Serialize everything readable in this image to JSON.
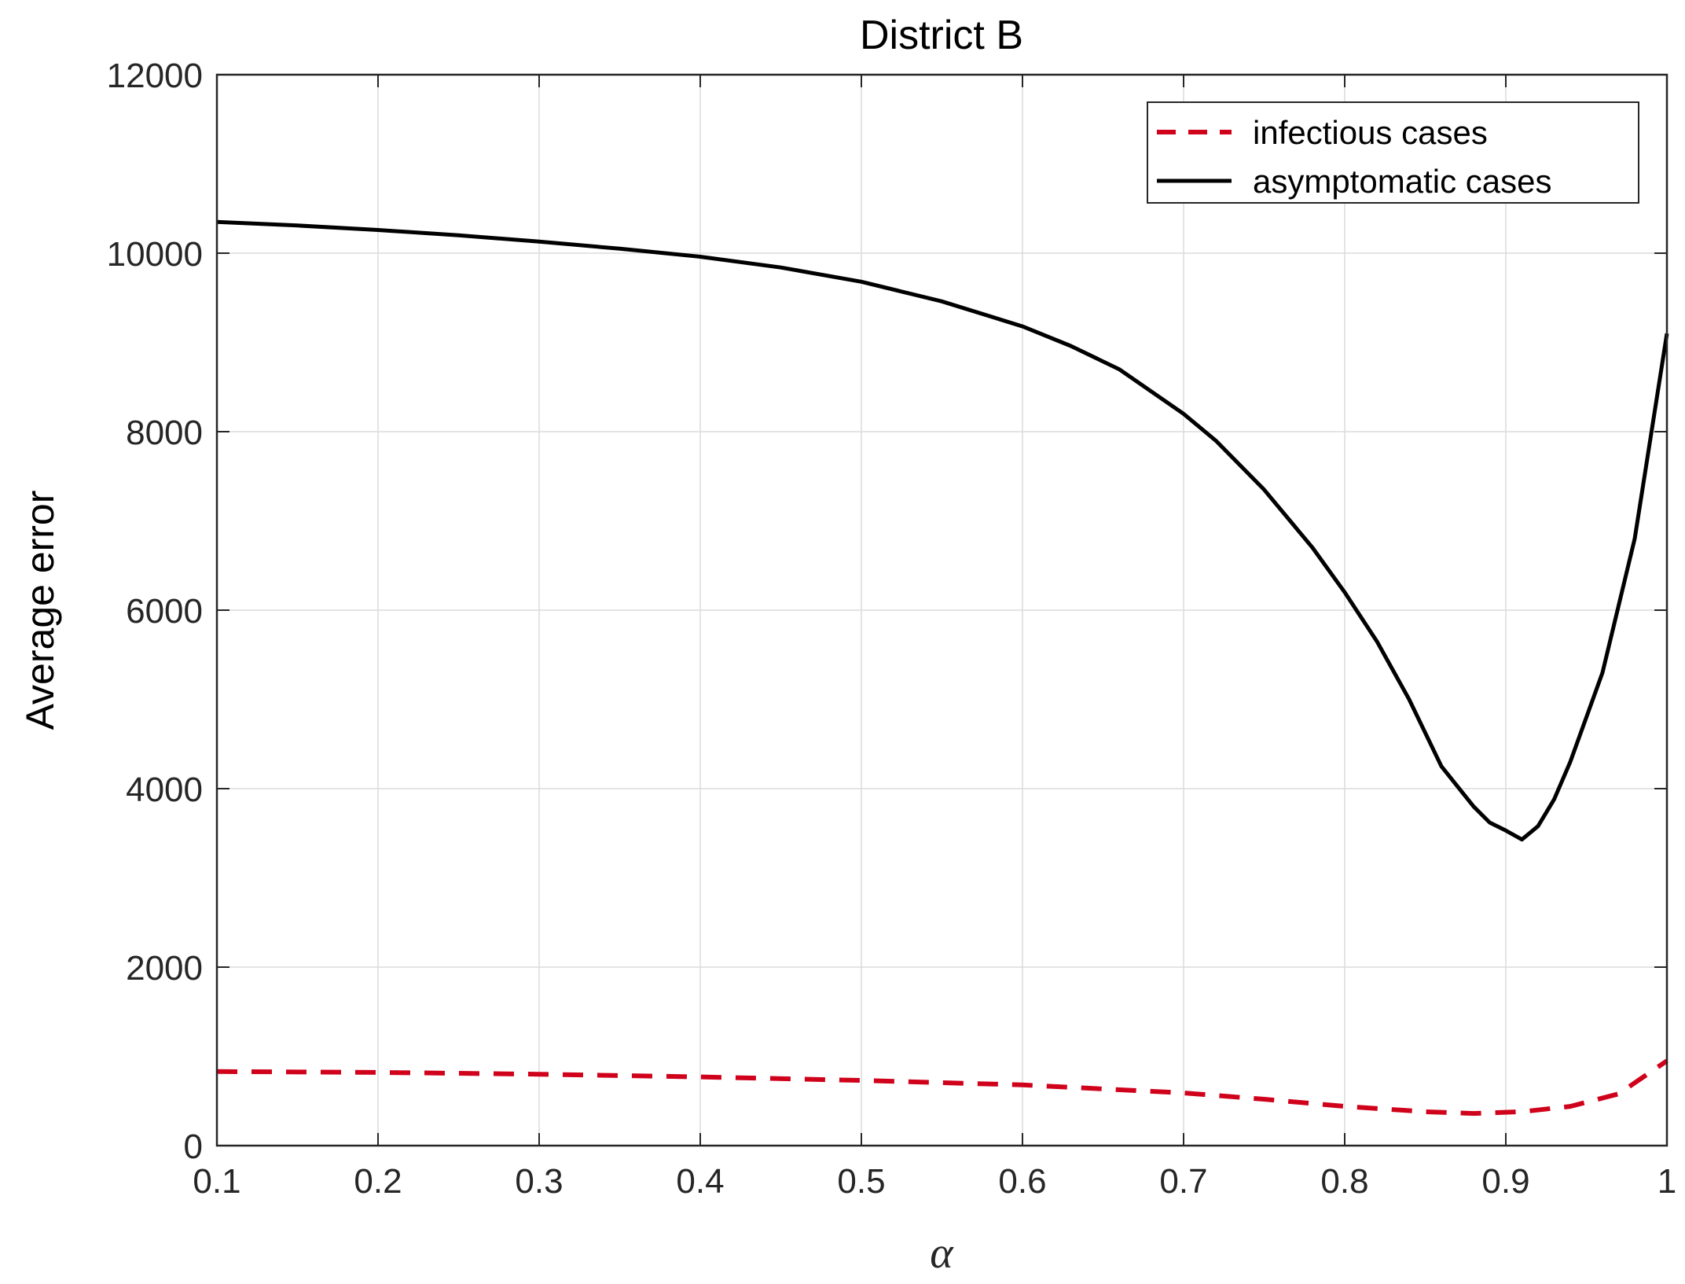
{
  "chart_data": {
    "type": "line",
    "title": "District B",
    "xlabel": "α",
    "ylabel": "Average error",
    "xlim": [
      0.1,
      1
    ],
    "ylim": [
      0,
      12000
    ],
    "xticks": [
      0.1,
      0.2,
      0.3,
      0.4,
      0.5,
      0.6,
      0.7,
      0.8,
      0.9,
      1
    ],
    "xtick_labels": [
      "0.1",
      "0.2",
      "0.3",
      "0.4",
      "0.5",
      "0.6",
      "0.7",
      "0.8",
      "0.9",
      "1"
    ],
    "yticks": [
      0,
      2000,
      4000,
      6000,
      8000,
      10000,
      12000
    ],
    "ytick_labels": [
      "0",
      "2000",
      "4000",
      "6000",
      "8000",
      "10000",
      "12000"
    ],
    "grid": true,
    "legend_position": "top-right",
    "series": [
      {
        "name": "infectious cases",
        "color": "#d0021b",
        "line_style": "dashed",
        "x": [
          0.1,
          0.2,
          0.3,
          0.4,
          0.5,
          0.6,
          0.7,
          0.75,
          0.8,
          0.85,
          0.88,
          0.91,
          0.94,
          0.97,
          1.0
        ],
        "y": [
          830,
          820,
          800,
          770,
          730,
          680,
          590,
          520,
          440,
          380,
          360,
          380,
          440,
          580,
          950
        ]
      },
      {
        "name": "asymptomatic cases",
        "color": "#000000",
        "line_style": "solid",
        "x": [
          0.1,
          0.15,
          0.2,
          0.25,
          0.3,
          0.35,
          0.4,
          0.45,
          0.5,
          0.55,
          0.6,
          0.63,
          0.66,
          0.7,
          0.72,
          0.75,
          0.78,
          0.8,
          0.82,
          0.84,
          0.86,
          0.88,
          0.89,
          0.9,
          0.91,
          0.92,
          0.93,
          0.94,
          0.96,
          0.98,
          1.0
        ],
        "y": [
          10350,
          10310,
          10260,
          10200,
          10130,
          10050,
          9960,
          9840,
          9680,
          9460,
          9180,
          8960,
          8700,
          8200,
          7900,
          7350,
          6700,
          6200,
          5650,
          5000,
          4250,
          3800,
          3620,
          3530,
          3430,
          3580,
          3880,
          4300,
          5300,
          6800,
          9100
        ]
      }
    ]
  }
}
